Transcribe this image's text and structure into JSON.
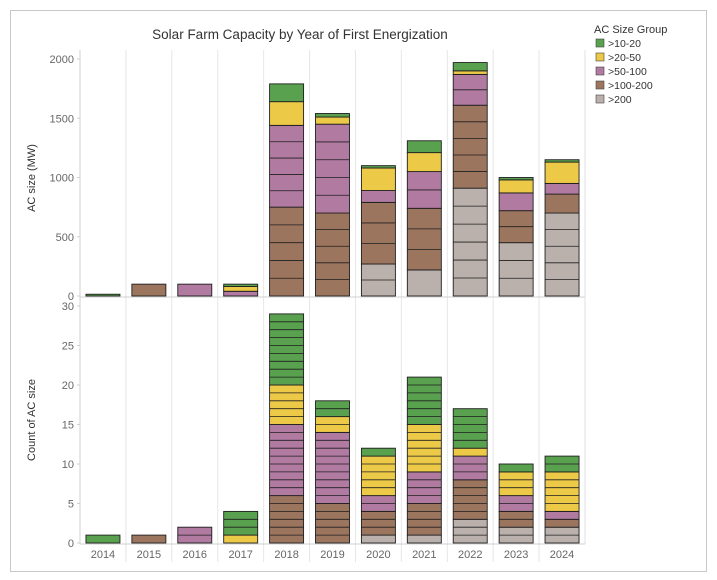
{
  "chart_data": [
    {
      "type": "bar",
      "stacked": true,
      "title": "Solar Farm Capacity by Year of First Energization",
      "xlabel": "",
      "ylabel": "AC size (MW)",
      "ylim": [
        0,
        2000
      ],
      "yticks": [
        0,
        500,
        1000,
        1500,
        2000
      ],
      "yticklabels": [
        "0",
        "500",
        "1000",
        "1500",
        "2000"
      ],
      "categories": [
        "2014",
        "2015",
        "2016",
        "2017",
        "2018",
        "2019",
        "2020",
        "2021",
        "2022",
        "2023",
        "2024"
      ],
      "series": [
        {
          "name": ">200",
          "values": [
            0,
            0,
            0,
            0,
            0,
            0,
            270,
            220,
            910,
            450,
            700
          ]
        },
        {
          "name": ">100-200",
          "values": [
            0,
            100,
            0,
            0,
            750,
            700,
            520,
            520,
            700,
            270,
            160
          ]
        },
        {
          "name": ">50-100",
          "values": [
            0,
            0,
            100,
            40,
            690,
            750,
            100,
            310,
            260,
            150,
            90
          ]
        },
        {
          "name": ">20-50",
          "values": [
            0,
            0,
            0,
            40,
            200,
            60,
            190,
            160,
            30,
            110,
            180
          ]
        },
        {
          "name": ">10-20",
          "values": [
            15,
            0,
            0,
            20,
            150,
            30,
            20,
            100,
            70,
            20,
            20
          ]
        }
      ]
    },
    {
      "type": "bar",
      "stacked": true,
      "title": "",
      "xlabel": "",
      "ylabel": "Count of AC size",
      "ylim": [
        0,
        30
      ],
      "yticks": [
        0,
        5,
        10,
        15,
        20,
        25,
        30
      ],
      "yticklabels": [
        "0",
        "5",
        "10",
        "15",
        "20",
        "25",
        "30"
      ],
      "categories": [
        "2014",
        "2015",
        "2016",
        "2017",
        "2018",
        "2019",
        "2020",
        "2021",
        "2022",
        "2023",
        "2024"
      ],
      "series": [
        {
          "name": ">200",
          "values": [
            0,
            0,
            0,
            0,
            0,
            0,
            1,
            1,
            3,
            2,
            2
          ]
        },
        {
          "name": ">100-200",
          "values": [
            0,
            1,
            0,
            0,
            6,
            5,
            3,
            4,
            5,
            2,
            1
          ]
        },
        {
          "name": ">50-100",
          "values": [
            0,
            0,
            2,
            0,
            9,
            9,
            2,
            4,
            3,
            2,
            1
          ]
        },
        {
          "name": ">20-50",
          "values": [
            0,
            0,
            0,
            1,
            5,
            2,
            5,
            6,
            1,
            3,
            5
          ]
        },
        {
          "name": ">10-20",
          "values": [
            1,
            0,
            0,
            3,
            9,
            2,
            1,
            6,
            5,
            1,
            2
          ]
        }
      ]
    }
  ],
  "legend": {
    "title": "AC Size Group",
    "items": [
      {
        "label": ">10-20",
        "color": "#59a14f"
      },
      {
        "label": ">20-50",
        "color": "#edc948"
      },
      {
        "label": ">50-100",
        "color": "#b07aa1"
      },
      {
        "label": ">100-200",
        "color": "#9c755f"
      },
      {
        "label": ">200",
        "color": "#bab0ac"
      }
    ]
  },
  "series_colors": {
    ">10-20": "#59a14f",
    ">20-50": "#edc948",
    ">50-100": "#b07aa1",
    ">100-200": "#9c755f",
    ">200": "#bab0ac"
  }
}
